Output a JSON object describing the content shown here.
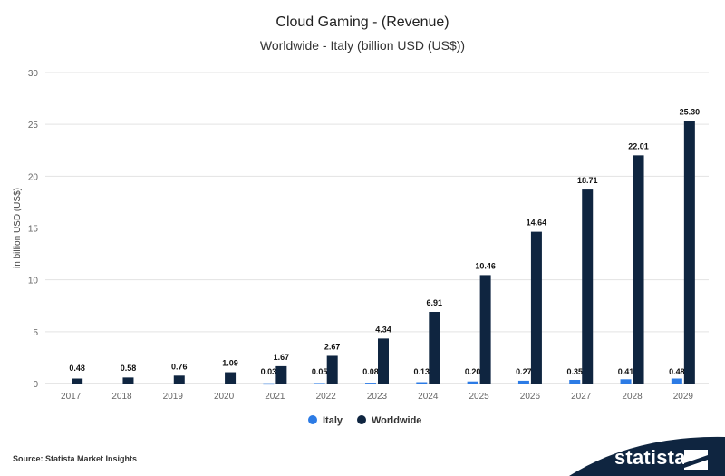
{
  "header": {
    "title": "Cloud Gaming - (Revenue)",
    "subtitle": "Worldwide - Italy (billion USD (US$))"
  },
  "footer": {
    "source": "Source: Statista Market Insights",
    "brand": "statista"
  },
  "colors": {
    "italy": "#2c7be5",
    "worldwide": "#0f2540",
    "grid": "#e3e3e3",
    "axis_text": "#666666",
    "brand_band": "#0f2540"
  },
  "chart_data": {
    "type": "bar",
    "categories": [
      "2017",
      "2018",
      "2019",
      "2020",
      "2021",
      "2022",
      "2023",
      "2024",
      "2025",
      "2026",
      "2027",
      "2028",
      "2029"
    ],
    "series": [
      {
        "name": "Italy",
        "values": [
          null,
          null,
          null,
          null,
          0.03,
          0.05,
          0.08,
          0.13,
          0.2,
          0.27,
          0.35,
          0.41,
          0.48
        ]
      },
      {
        "name": "Worldwide",
        "values": [
          0.48,
          0.58,
          0.76,
          1.09,
          1.67,
          2.67,
          4.34,
          6.91,
          10.46,
          14.64,
          18.71,
          22.01,
          25.3
        ]
      }
    ],
    "ylabel": "in billion USD (US$)",
    "ylim": [
      0,
      30
    ],
    "yticks": [
      0,
      5,
      10,
      15,
      20,
      25,
      30
    ],
    "grid": true,
    "legend": "bottom-center"
  }
}
